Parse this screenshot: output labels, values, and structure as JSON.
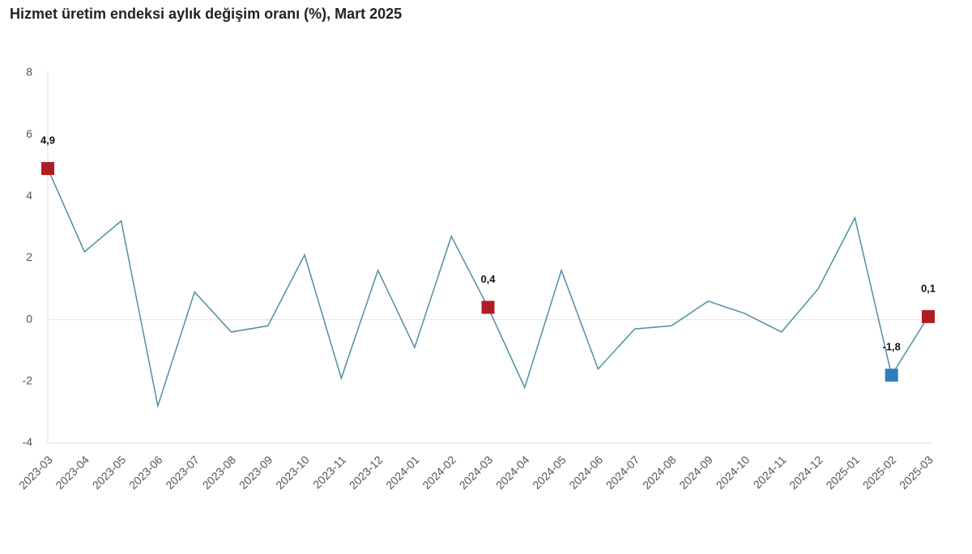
{
  "chart_data": {
    "type": "line",
    "title": "Hizmet üretim endeksi aylık değişim oranı (%), Mart 2025",
    "categories": [
      "2023-03",
      "2023-04",
      "2023-05",
      "2023-06",
      "2023-07",
      "2023-08",
      "2023-09",
      "2023-10",
      "2023-11",
      "2023-12",
      "2024-01",
      "2024-02",
      "2024-03",
      "2024-04",
      "2024-05",
      "2024-06",
      "2024-07",
      "2024-08",
      "2024-09",
      "2024-10",
      "2024-11",
      "2024-12",
      "2025-01",
      "2025-02",
      "2025-03"
    ],
    "values": [
      4.9,
      2.2,
      3.2,
      -2.8,
      0.9,
      -0.4,
      -0.2,
      2.1,
      -1.9,
      1.6,
      -0.9,
      2.7,
      0.4,
      -2.2,
      1.6,
      -1.6,
      -0.3,
      -0.2,
      0.6,
      0.2,
      -0.4,
      1.0,
      3.3,
      -1.8,
      0.1
    ],
    "value_labels": [
      "4,9",
      null,
      null,
      null,
      null,
      null,
      null,
      null,
      null,
      null,
      null,
      null,
      "0,4",
      null,
      null,
      null,
      null,
      null,
      null,
      null,
      null,
      null,
      null,
      "-1,8",
      "0,1"
    ],
    "marker_colors": [
      "#b01c22",
      null,
      null,
      null,
      null,
      null,
      null,
      null,
      null,
      null,
      null,
      null,
      "#b01c22",
      null,
      null,
      null,
      null,
      null,
      null,
      null,
      null,
      null,
      null,
      "#2f7fbf",
      "#b01c22"
    ],
    "color": "#4f8ea3",
    "ylim": [
      -4,
      8
    ],
    "yticks": [
      -4,
      -2,
      0,
      2,
      4,
      6,
      8
    ],
    "baseline": 0,
    "grid": false
  }
}
